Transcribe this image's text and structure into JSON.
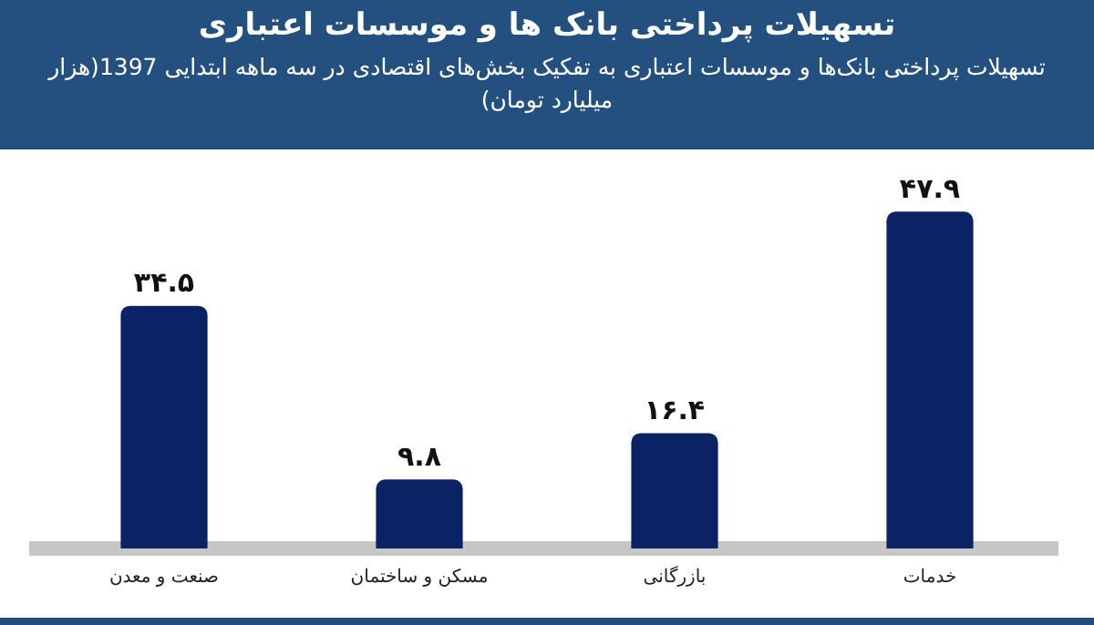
{
  "chart_data": {
    "type": "bar",
    "title": "تسهیلات پرداختی بانک ها و موسسات اعتباری",
    "subtitle": "تسهیلات پرداختی بانک‌ها و موسسات اعتباری به تفکیک بخش‌های اقتصادی در سه ماهه ابتدایی 1397(هزار میلیارد تومان)",
    "categories": [
      "صنعت و معدن",
      "مسکن و ساختمان",
      "بازرگانی",
      "خدمات"
    ],
    "values": [
      34.5,
      9.8,
      16.4,
      47.9
    ],
    "value_labels": [
      "۳۴.۵",
      "۹.۸",
      "۱۶.۴",
      "۴۷.۹"
    ],
    "color": "#0b2264",
    "grid": false,
    "legend": false,
    "tick_labels": "x"
  }
}
